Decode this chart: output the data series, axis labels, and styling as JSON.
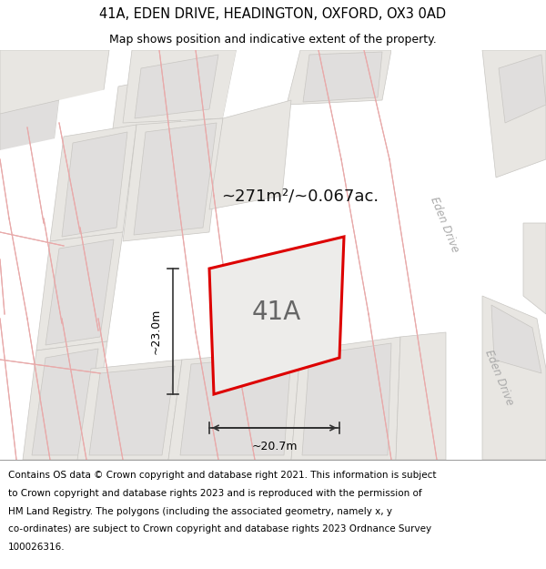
{
  "title_line1": "41A, EDEN DRIVE, HEADINGTON, OXFORD, OX3 0AD",
  "title_line2": "Map shows position and indicative extent of the property.",
  "area_text": "~271m²/~0.067ac.",
  "label_41A": "41A",
  "dim_width": "~20.7m",
  "dim_height": "~23.0m",
  "street_label_upper": "Eden Drive",
  "street_label_lower": "Eden Drive",
  "footer_lines": [
    "Contains OS data © Crown copyright and database right 2021. This information is subject",
    "to Crown copyright and database rights 2023 and is reproduced with the permission of",
    "HM Land Registry. The polygons (including the associated geometry, namely x, y",
    "co-ordinates) are subject to Crown copyright and database rights 2023 Ordnance Survey",
    "100026316."
  ],
  "bg_color": "#f5f3f0",
  "parcel_fill": "#e8e6e2",
  "parcel_edge": "#c8c6c2",
  "road_fill": "#ffffff",
  "prop_fill": "#eceae6",
  "prop_edge": "#dd0000",
  "dim_color": "#333333",
  "text_gray": "#aaaaaa",
  "area_color": "#333333",
  "footer_fontsize": 7.5,
  "title_fontsize": 10.5,
  "subtitle_fontsize": 9.0,
  "label_fontsize": 20,
  "area_fontsize": 13,
  "street_fontsize": 8.5
}
